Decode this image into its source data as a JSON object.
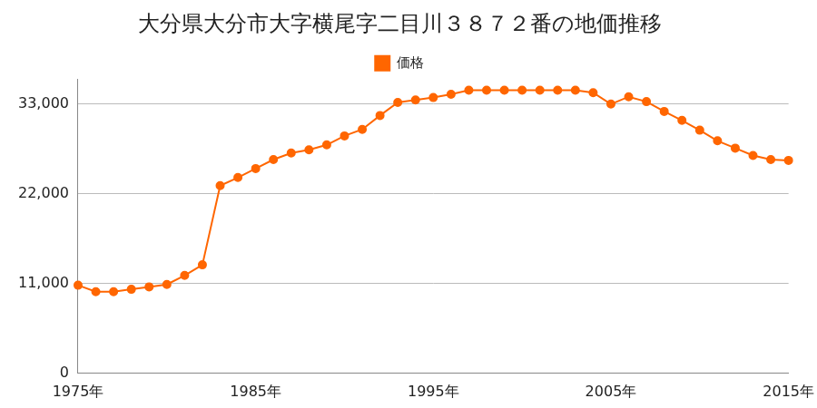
{
  "chart_data": {
    "type": "line",
    "title": "大分県大分市大字横尾字二目川３８７２番の地価推移",
    "categories": [
      "1975年",
      null,
      null,
      null,
      null,
      null,
      null,
      null,
      null,
      null,
      "1985年",
      null,
      null,
      null,
      null,
      null,
      null,
      null,
      null,
      null,
      "1995年",
      null,
      null,
      null,
      null,
      null,
      null,
      null,
      null,
      null,
      "2005年",
      null,
      null,
      null,
      null,
      null,
      null,
      null,
      null,
      null,
      "2015年"
    ],
    "series": [
      {
        "name": "価格",
        "color": "#ff6600",
        "marker": "circle",
        "values": [
          10800,
          10000,
          10000,
          10300,
          10600,
          10900,
          12000,
          13300,
          23000,
          24000,
          25100,
          26200,
          27000,
          27400,
          28000,
          29100,
          29900,
          31600,
          33200,
          33500,
          33800,
          34200,
          34700,
          34700,
          34700,
          34700,
          34700,
          34700,
          34700,
          34400,
          33000,
          33900,
          33300,
          32100,
          31000,
          29800,
          28500,
          27600,
          26700,
          26200,
          26100
        ]
      }
    ],
    "ylim": [
      0,
      36000
    ],
    "yticks": [
      0,
      {
        "value": 11000,
        "label": "11,000"
      },
      {
        "value": 22000,
        "label": "22,000"
      },
      {
        "value": 33000,
        "label": "33,000"
      }
    ],
    "grid": true,
    "legend": "top"
  }
}
